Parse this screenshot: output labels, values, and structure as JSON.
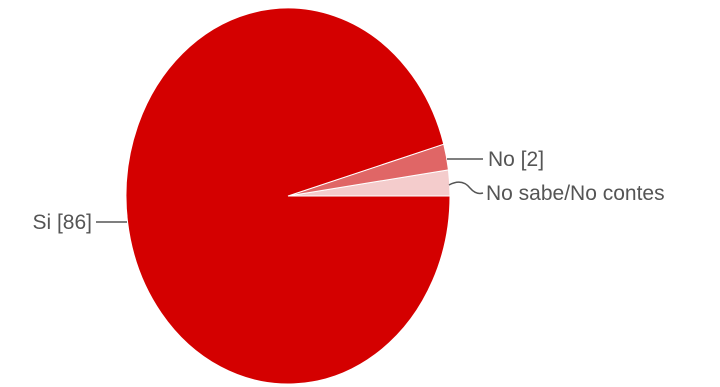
{
  "chart_data": {
    "type": "pie",
    "title": "",
    "slices": [
      {
        "label": "Si [86]",
        "value": 86,
        "color": "#d40000"
      },
      {
        "label": "No [2]",
        "value": 2,
        "color": "#e06666"
      },
      {
        "label": "No sabe/No contes",
        "value": 2,
        "color": "#f4cccc"
      }
    ]
  }
}
